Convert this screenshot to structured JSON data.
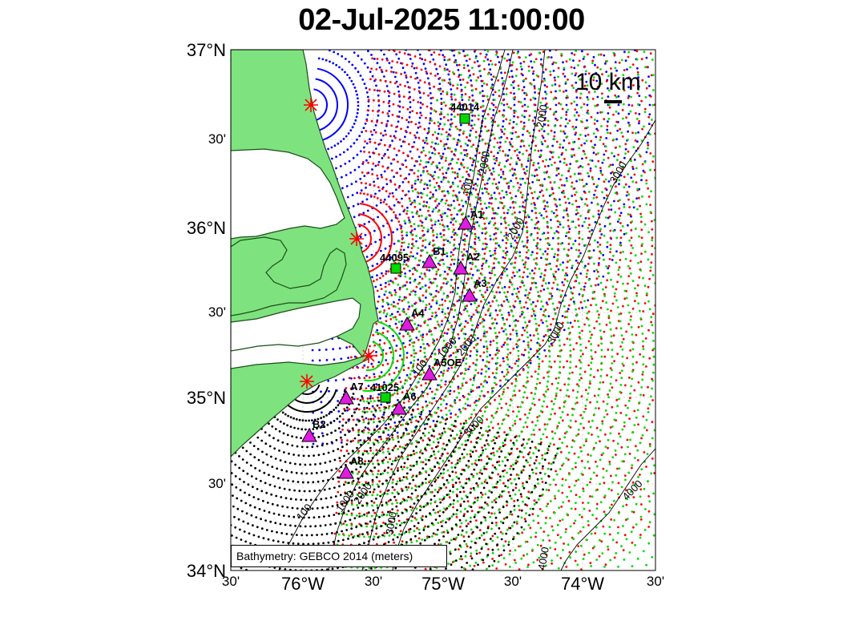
{
  "title": "02-Jul-2025 11:00:00",
  "y_axis_labels": [
    "37°N",
    "30'",
    "36°N",
    "30'",
    "35°N",
    "30'",
    "34°N"
  ],
  "x_axis_labels": [
    "30'",
    "76°W",
    "30'",
    "75°W",
    "30'",
    "74°W",
    "30'"
  ],
  "legend": "Bathymetry: GEBCO 2014 (meters)",
  "scale_bar_label": "10 km",
  "stations": [
    {
      "name": "A1",
      "type": "triangle"
    },
    {
      "name": "A2",
      "type": "triangle"
    },
    {
      "name": "A3",
      "type": "triangle"
    },
    {
      "name": "A4",
      "type": "triangle"
    },
    {
      "name": "A5OE",
      "type": "triangle"
    },
    {
      "name": "A6",
      "type": "triangle"
    },
    {
      "name": "A7",
      "type": "triangle"
    },
    {
      "name": "A8",
      "type": "triangle"
    },
    {
      "name": "B1",
      "type": "triangle"
    },
    {
      "name": "B2",
      "type": "triangle"
    }
  ],
  "buoys": [
    "44014",
    "44095",
    "41025"
  ],
  "contour_labels": [
    "100",
    "1000",
    "2000",
    "3000",
    "4000"
  ],
  "colors": {
    "land": "#7ee37e",
    "station": "#e01ce0",
    "buoy": "#00d800",
    "site_marker": "#ff0000",
    "radar_blue": "#0000ff",
    "radar_red": "#ff0000",
    "radar_green": "#00dd00",
    "radar_black": "#000000"
  }
}
